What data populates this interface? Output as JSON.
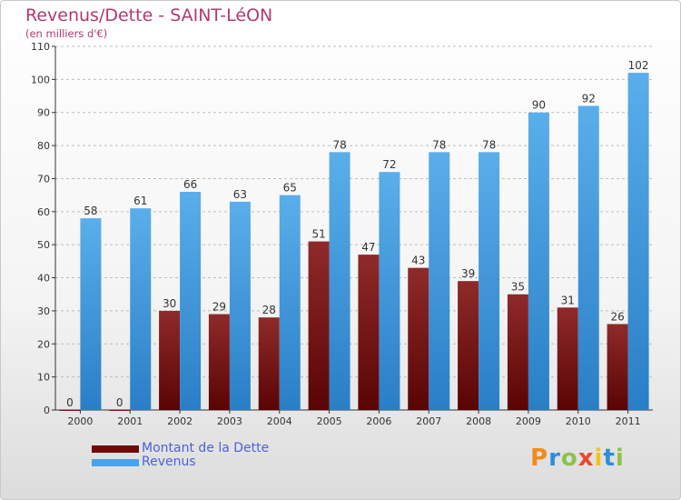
{
  "header": {
    "title": "Revenus/Dette - SAINT-LéON",
    "subtitle": "(en milliers d'€)"
  },
  "legend": {
    "items": [
      {
        "label": "Montant de la Dette",
        "color": "#6e0a0a"
      },
      {
        "label": "Revenus",
        "color": "#4aa3e8"
      }
    ]
  },
  "logo": {
    "text": "Proxiti",
    "colors": [
      "#f28a1a",
      "#2a8fd8",
      "#8bc34a",
      "#e84a2a",
      "#f2c21a",
      "#2a8fd8",
      "#8bc34a"
    ]
  },
  "chart_data": {
    "type": "bar",
    "title": "Revenus/Dette - SAINT-LéON",
    "subtitle": "(en milliers d'€)",
    "categories": [
      "2000",
      "2001",
      "2002",
      "2003",
      "2004",
      "2005",
      "2006",
      "2007",
      "2008",
      "2009",
      "2010",
      "2011"
    ],
    "series": [
      {
        "name": "Montant de la Dette",
        "color": "#7a1414",
        "values": [
          0,
          0,
          30,
          29,
          28,
          51,
          47,
          43,
          39,
          35,
          31,
          26
        ]
      },
      {
        "name": "Revenus",
        "color": "#4aa3e8",
        "values": [
          58,
          61,
          66,
          63,
          65,
          78,
          72,
          78,
          78,
          90,
          92,
          102
        ]
      }
    ],
    "ylim": [
      0,
      110
    ],
    "yticks": [
      0,
      10,
      20,
      30,
      40,
      50,
      60,
      70,
      80,
      90,
      100,
      110
    ],
    "grid": true,
    "legend_position": "bottom-left"
  }
}
